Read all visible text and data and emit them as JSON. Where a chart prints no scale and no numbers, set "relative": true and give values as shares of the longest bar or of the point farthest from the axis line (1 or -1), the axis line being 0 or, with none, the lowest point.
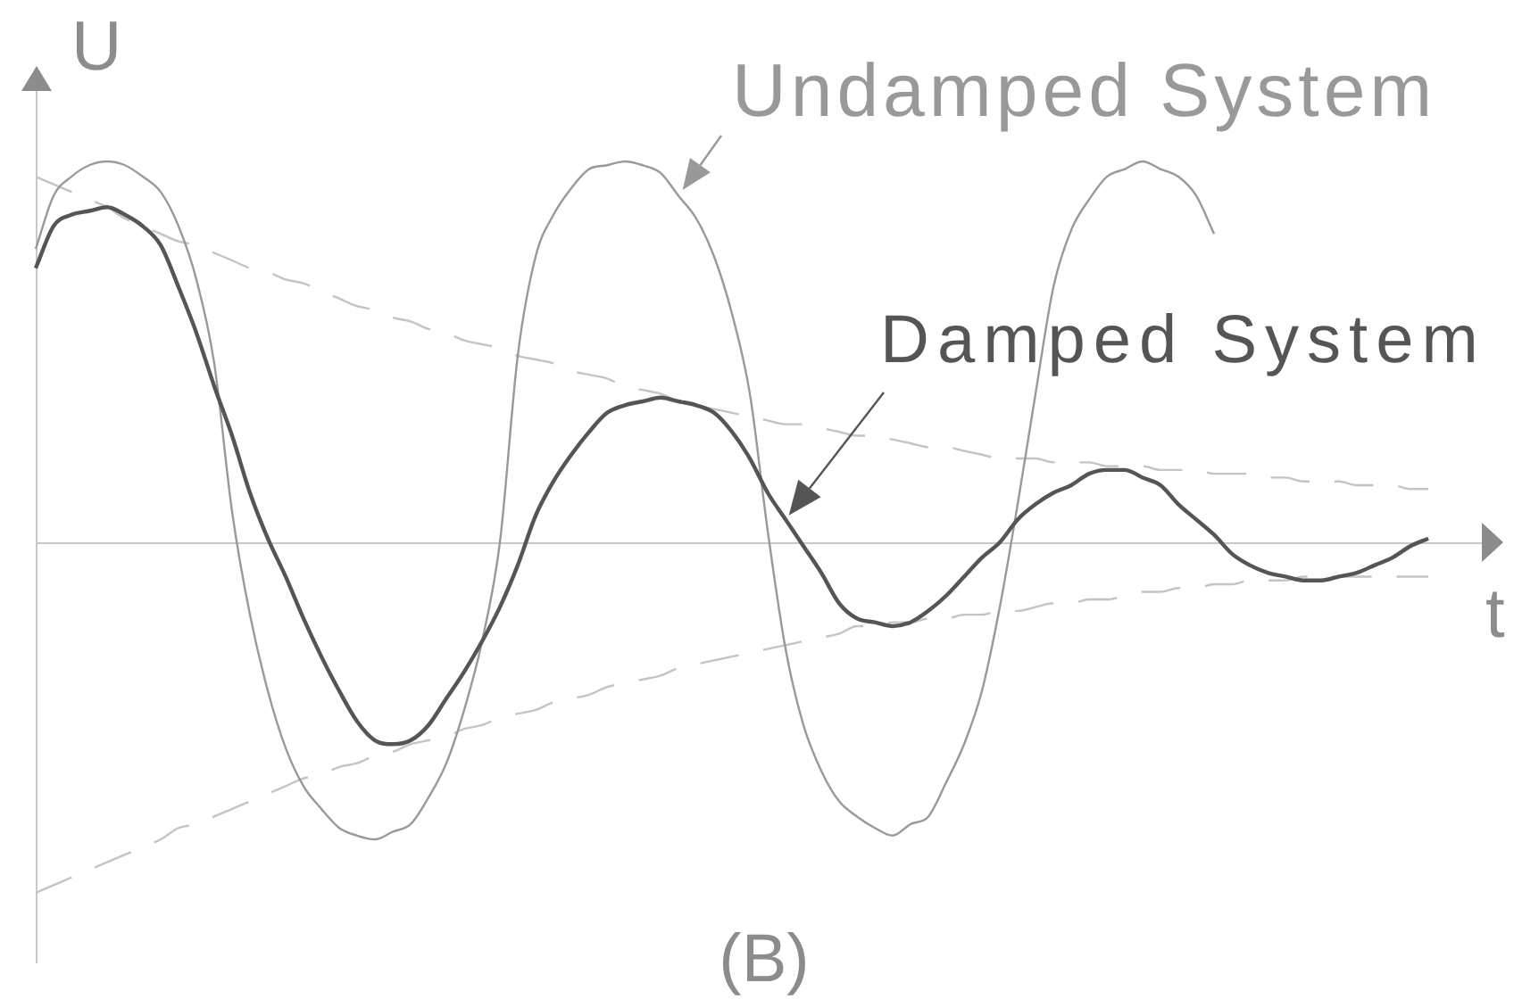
{
  "chart_data": {
    "type": "line",
    "relative": true,
    "line_style": "solid",
    "xlabel": "t",
    "ylabel": "U",
    "annotations": [
      "(B)"
    ],
    "categories": [
      null,
      null,
      null,
      null,
      null,
      null,
      null,
      null,
      null,
      null,
      null,
      null,
      null,
      null,
      null,
      null,
      null,
      null,
      null,
      null,
      null,
      null,
      null,
      null,
      null,
      null,
      null,
      null,
      null,
      null,
      null,
      null,
      null,
      null,
      null,
      null,
      null,
      null,
      null,
      null,
      null,
      null,
      null,
      null,
      null,
      null,
      null,
      null,
      null,
      null,
      null,
      null,
      null,
      null,
      null,
      null,
      null,
      null,
      null,
      null,
      null,
      null,
      null,
      null,
      null,
      null,
      null,
      null,
      null,
      null,
      null,
      null,
      null,
      null,
      null,
      null,
      null,
      null,
      null,
      null,
      null,
      null
    ],
    "series": [
      {
        "name": "Undamped System",
        "color": "#999999",
        "values": [
          0.77,
          0.91,
          0.96,
          0.99,
          1,
          0.99,
          0.96,
          0.92,
          0.83,
          0.69,
          0.47,
          0.08,
          -0.19,
          -0.39,
          -0.54,
          -0.64,
          -0.7,
          -0.75,
          -0.77,
          -0.78,
          -0.76,
          -0.74,
          -0.67,
          -0.58,
          -0.44,
          -0.26,
          0,
          0.49,
          0.75,
          0.86,
          0.93,
          0.98,
          0.99,
          1,
          0.99,
          0.97,
          0.91,
          0.85,
          0.75,
          0.6,
          0.39,
          0.03,
          -0.28,
          -0.48,
          -0.6,
          -0.68,
          -0.72,
          -0.75,
          -0.77,
          -0.74,
          -0.72,
          -0.63,
          -0.53,
          -0.39,
          -0.17,
          0.1,
          0.39,
          0.67,
          0.82,
          0.9,
          0.96,
          0.98,
          1,
          0.98,
          0.96,
          0.91,
          0.81,
          null,
          null,
          null,
          null,
          null,
          null,
          null,
          null,
          null,
          null,
          null,
          null,
          null,
          null,
          null
        ]
      },
      {
        "name": "Damped System",
        "color": "#555555",
        "values": [
          0.72,
          0.83,
          0.86,
          0.87,
          0.88,
          0.86,
          0.83,
          0.78,
          0.67,
          0.55,
          0.41,
          0.28,
          0.13,
          0.01,
          -0.09,
          -0.2,
          -0.3,
          -0.39,
          -0.47,
          -0.52,
          -0.53,
          -0.52,
          -0.48,
          -0.41,
          -0.34,
          -0.26,
          -0.17,
          -0.06,
          0.07,
          0.16,
          0.23,
          0.29,
          0.34,
          0.36,
          0.37,
          0.38,
          0.37,
          0.36,
          0.34,
          0.29,
          0.22,
          0.13,
          0.06,
          -0.01,
          -0.08,
          -0.16,
          -0.2,
          -0.21,
          -0.22,
          -0.21,
          -0.18,
          -0.14,
          -0.09,
          -0.04,
          0,
          0.06,
          0.1,
          0.13,
          0.15,
          0.18,
          0.19,
          0.19,
          0.17,
          0.15,
          0.1,
          0.06,
          0.02,
          -0.03,
          -0.06,
          -0.08,
          -0.09,
          -0.1,
          -0.1,
          -0.09,
          -0.08,
          -0.06,
          -0.04,
          -0.01,
          0.01,
          null,
          null,
          null
        ]
      },
      {
        "color": "#c4c4c4",
        "line_style": "dashed",
        "values": [
          0.96,
          0.94,
          0.92,
          0.9,
          0.88,
          0.85,
          0.83,
          0.81,
          0.79,
          0.78,
          0.76,
          0.74,
          0.72,
          0.71,
          0.69,
          0.68,
          0.66,
          0.64,
          0.62,
          0.61,
          0.59,
          0.58,
          0.56,
          0.55,
          0.53,
          0.52,
          0.51,
          0.49,
          0.48,
          0.47,
          0.45,
          0.44,
          0.43,
          0.41,
          0.4,
          0.39,
          0.37,
          0.36,
          0.35,
          0.34,
          0.33,
          0.32,
          0.31,
          0.31,
          0.3,
          0.29,
          0.28,
          0.28,
          0.27,
          0.26,
          0.25,
          0.25,
          0.24,
          0.23,
          0.22,
          0.22,
          0.22,
          0.21,
          0.21,
          0.21,
          0.2,
          0.2,
          0.2,
          0.19,
          0.19,
          0.19,
          0.18,
          0.18,
          0.18,
          0.17,
          0.17,
          0.16,
          0.16,
          0.16,
          0.15,
          0.15,
          0.15,
          0.14,
          0.14,
          null,
          null,
          null
        ]
      },
      {
        "color": "#c4c4c4",
        "line_style": "dashed",
        "values": [
          -0.92,
          -0.9,
          -0.88,
          -0.86,
          -0.84,
          -0.82,
          -0.8,
          -0.78,
          -0.75,
          -0.74,
          -0.72,
          -0.7,
          -0.68,
          -0.66,
          -0.64,
          -0.62,
          -0.61,
          -0.59,
          -0.58,
          -0.56,
          -0.55,
          -0.53,
          -0.52,
          -0.51,
          -0.49,
          -0.48,
          -0.46,
          -0.45,
          -0.44,
          -0.42,
          -0.41,
          -0.4,
          -0.38,
          -0.37,
          -0.36,
          -0.35,
          -0.33,
          -0.32,
          -0.31,
          -0.3,
          -0.29,
          -0.28,
          -0.27,
          -0.26,
          -0.25,
          -0.24,
          -0.22,
          -0.22,
          -0.21,
          -0.21,
          -0.2,
          -0.2,
          -0.19,
          -0.19,
          -0.18,
          -0.18,
          -0.17,
          -0.16,
          -0.16,
          -0.15,
          -0.15,
          -0.14,
          -0.13,
          -0.13,
          -0.12,
          -0.12,
          -0.11,
          -0.11,
          -0.1,
          -0.1,
          -0.1,
          -0.09,
          -0.09,
          -0.09,
          -0.09,
          -0.09,
          -0.09,
          -0.09,
          -0.09,
          null,
          null,
          null
        ]
      }
    ]
  }
}
